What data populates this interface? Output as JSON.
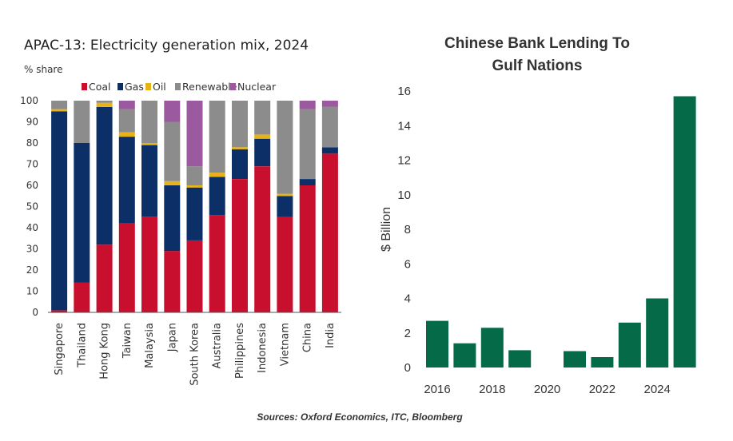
{
  "source_note": "Sources: Oxford Economics, ITC, Bloomberg",
  "chart_data": [
    {
      "type": "bar",
      "stacked": true,
      "title": "APAC-13: Electricity generation mix, 2024",
      "ylabel": "% share",
      "ylim": [
        0,
        100
      ],
      "yticks": [
        0,
        10,
        20,
        30,
        40,
        50,
        60,
        70,
        80,
        90,
        100
      ],
      "legend_position": "top",
      "grid": false,
      "categories": [
        "Singapore",
        "Thailand",
        "Hong Kong",
        "Taiwan",
        "Malaysia",
        "Japan",
        "South Korea",
        "Australia",
        "Philippines",
        "Indonesia",
        "Vietnam",
        "China",
        "India"
      ],
      "series": [
        {
          "name": "Coal",
          "color": "#c8102e",
          "values": [
            1,
            14,
            32,
            42,
            45,
            29,
            34,
            46,
            63,
            69,
            45,
            60,
            75
          ]
        },
        {
          "name": "Gas",
          "color": "#0b2f66",
          "values": [
            94,
            66,
            65,
            41,
            34,
            31,
            25,
            18,
            14,
            13,
            10,
            3,
            3
          ]
        },
        {
          "name": "Oil",
          "color": "#e8b219",
          "values": [
            1,
            0,
            2,
            2,
            1,
            2,
            1,
            2,
            1,
            2,
            1,
            0,
            0
          ]
        },
        {
          "name": "Renewable",
          "color": "#8c8c8c",
          "values": [
            4,
            20,
            1,
            11,
            20,
            28,
            9,
            34,
            22,
            16,
            44,
            33,
            19
          ]
        },
        {
          "name": "Nuclear",
          "color": "#9b5aa0",
          "values": [
            0,
            0,
            0,
            4,
            0,
            10,
            31,
            0,
            0,
            0,
            0,
            4,
            3
          ]
        }
      ]
    },
    {
      "type": "bar",
      "title": "Chinese Bank Lending To Gulf Nations",
      "ylabel": "$ Billion",
      "xlabel": "",
      "ylim": [
        0,
        16
      ],
      "yticks": [
        0,
        2,
        4,
        6,
        8,
        10,
        12,
        14,
        16
      ],
      "xticks": [
        2016,
        2018,
        2020,
        2022,
        2024
      ],
      "grid": false,
      "color": "#046a48",
      "x": [
        2016,
        2017,
        2018,
        2019,
        2020,
        2021,
        2022,
        2023,
        2024,
        2025
      ],
      "values": [
        2.7,
        1.4,
        2.3,
        1.0,
        0,
        0.95,
        0.6,
        2.6,
        4.0,
        15.7
      ]
    }
  ]
}
